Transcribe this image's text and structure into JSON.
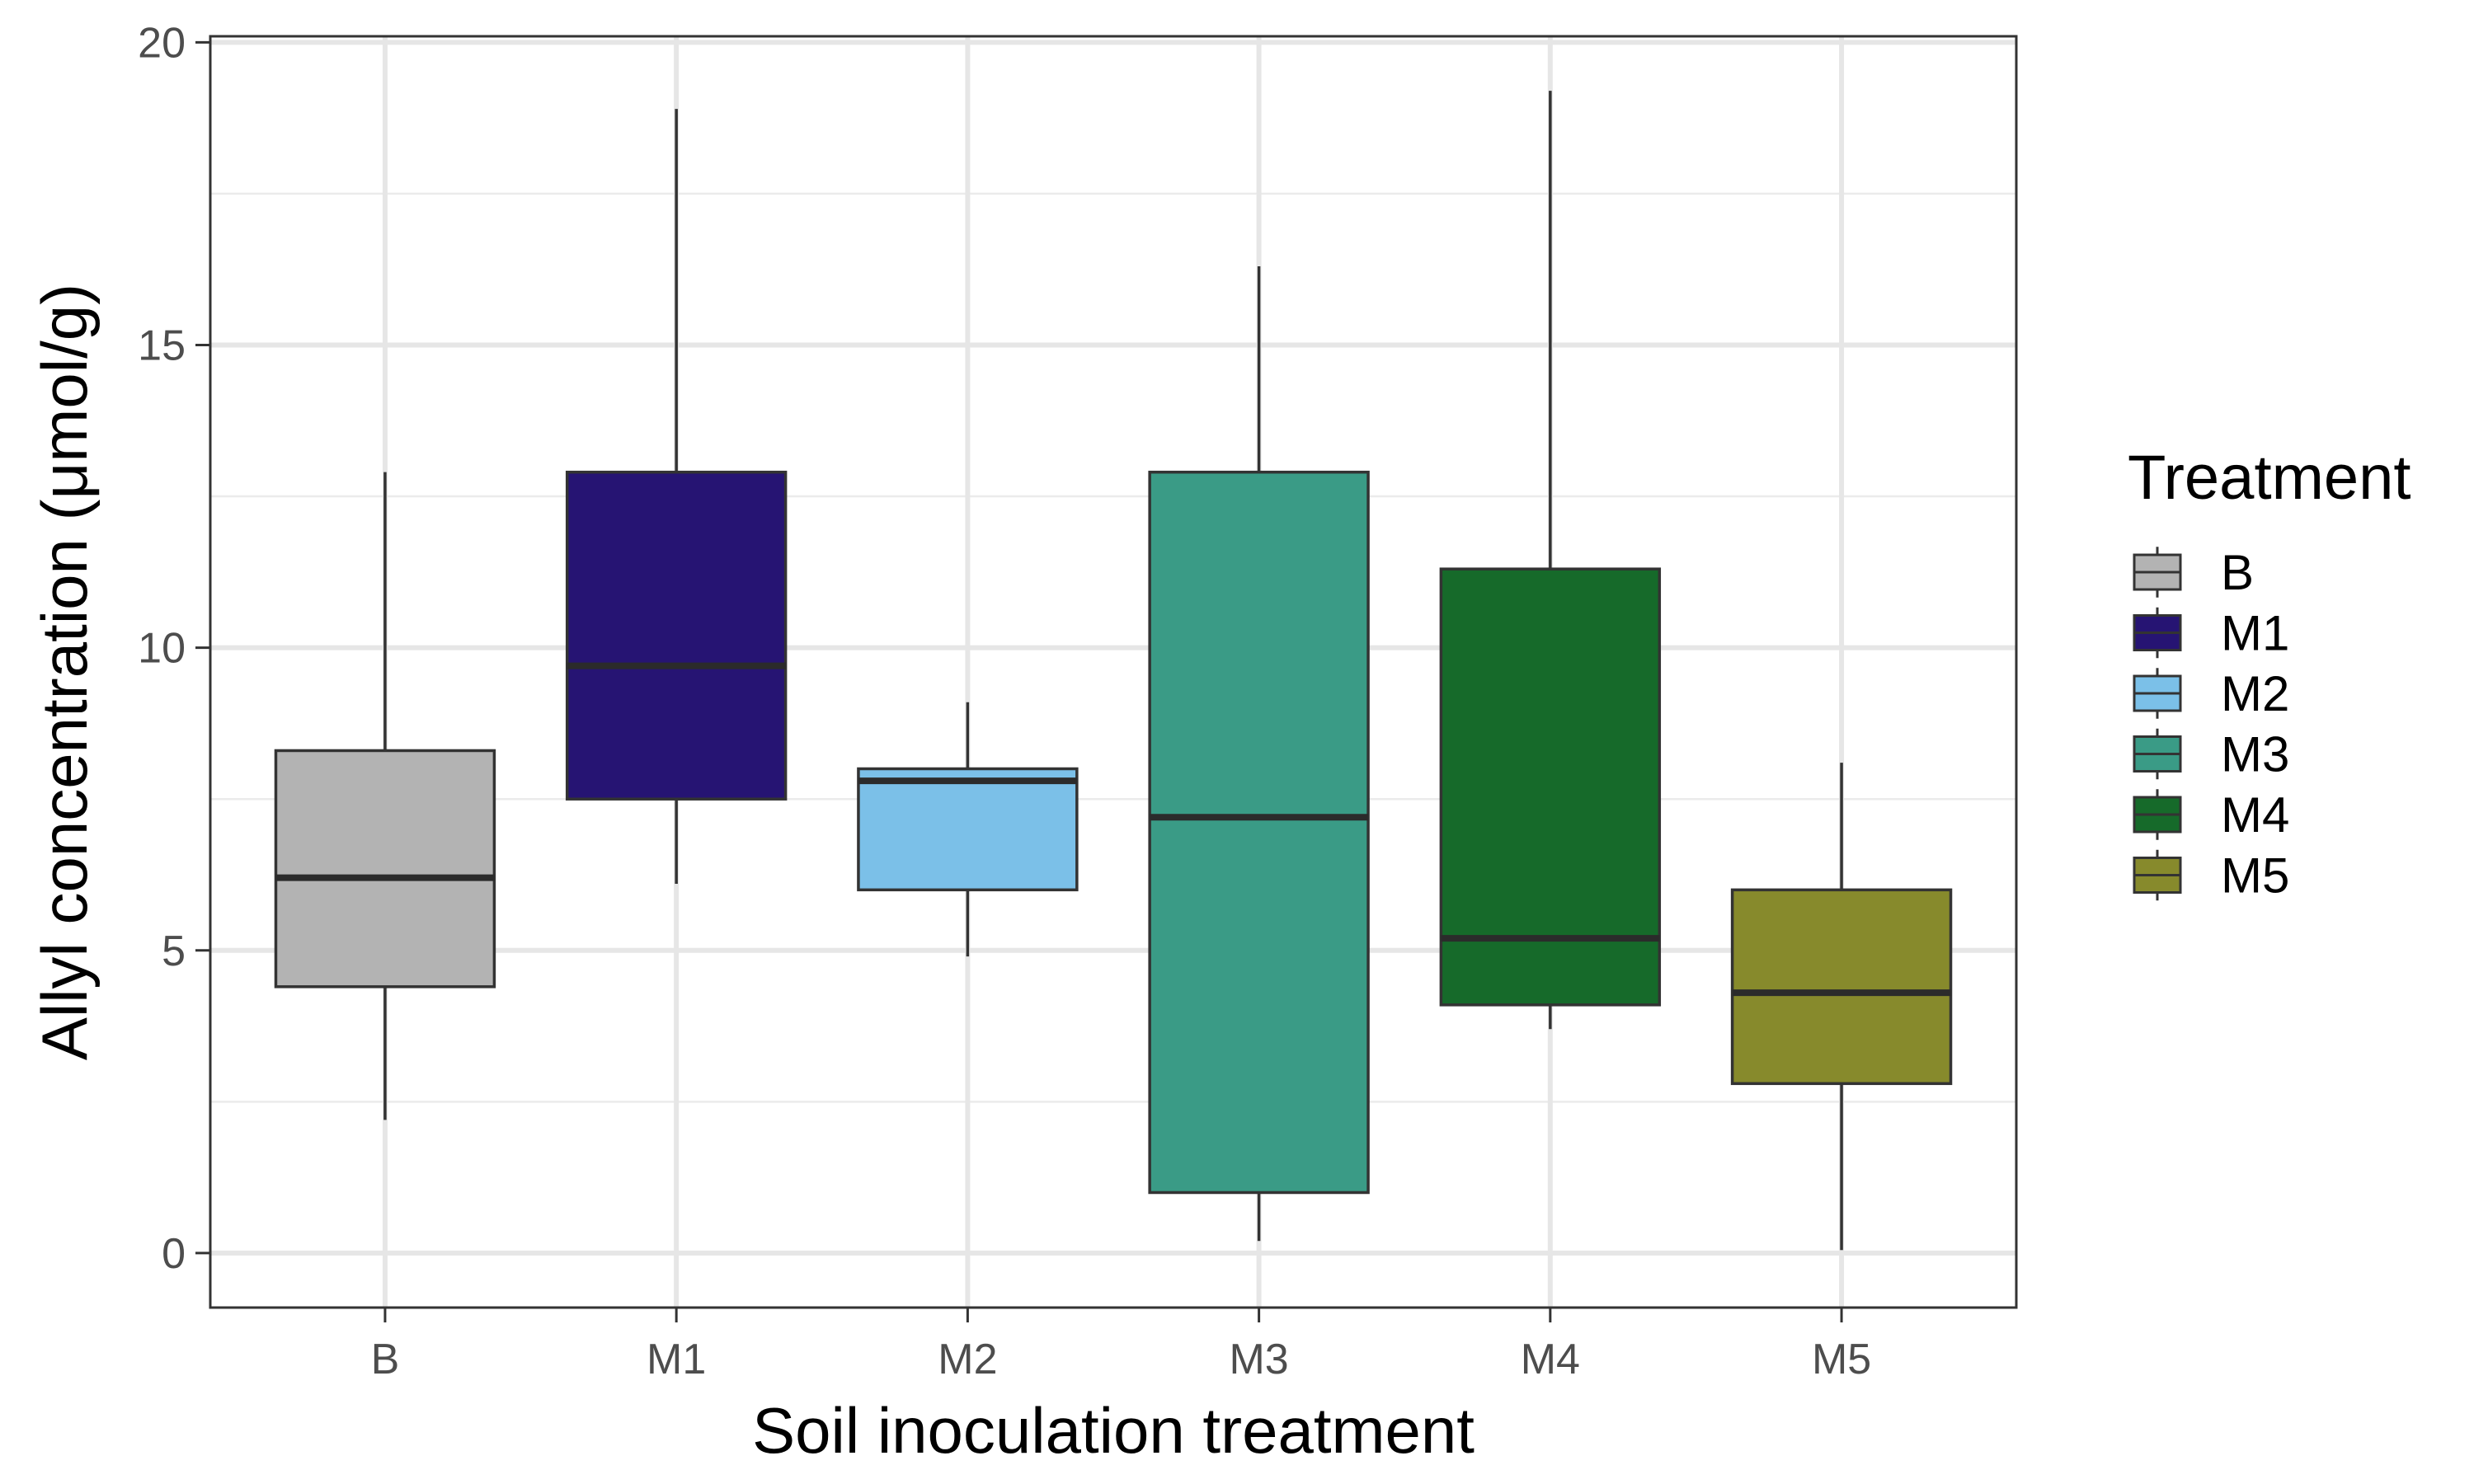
{
  "chart_data": {
    "type": "boxplot",
    "xlabel": "Soil inoculation treatment",
    "ylabel": "Allyl concentration (μmol/g)",
    "ylim": [
      -0.9,
      20.1
    ],
    "yticks": [
      0,
      5,
      10,
      15,
      20
    ],
    "yticklabels": [
      "0",
      "5",
      "10",
      "15",
      "20"
    ],
    "grid": true,
    "legend": {
      "title": "Treatment",
      "position": "right"
    },
    "categories": [
      "B",
      "M1",
      "M2",
      "M3",
      "M4",
      "M5"
    ],
    "colors": [
      "#b3b3b3",
      "#261473",
      "#7bc0e8",
      "#3a9b86",
      "#166a2a",
      "#878a2c"
    ],
    "boxes": [
      {
        "name": "B",
        "min": 2.2,
        "q1": 4.4,
        "median": 6.2,
        "q3": 8.3,
        "max": 12.9
      },
      {
        "name": "M1",
        "min": 6.1,
        "q1": 7.5,
        "median": 9.7,
        "q3": 12.9,
        "max": 18.9
      },
      {
        "name": "M2",
        "min": 4.9,
        "q1": 6.0,
        "median": 7.8,
        "q3": 8.0,
        "max": 9.1
      },
      {
        "name": "M3",
        "min": 0.2,
        "q1": 1.0,
        "median": 7.2,
        "q3": 12.9,
        "max": 16.3
      },
      {
        "name": "M4",
        "min": 3.7,
        "q1": 4.1,
        "median": 5.2,
        "q3": 11.3,
        "max": 19.2
      },
      {
        "name": "M5",
        "min": 0.05,
        "q1": 2.8,
        "median": 4.3,
        "q3": 6.0,
        "max": 8.1
      }
    ]
  }
}
